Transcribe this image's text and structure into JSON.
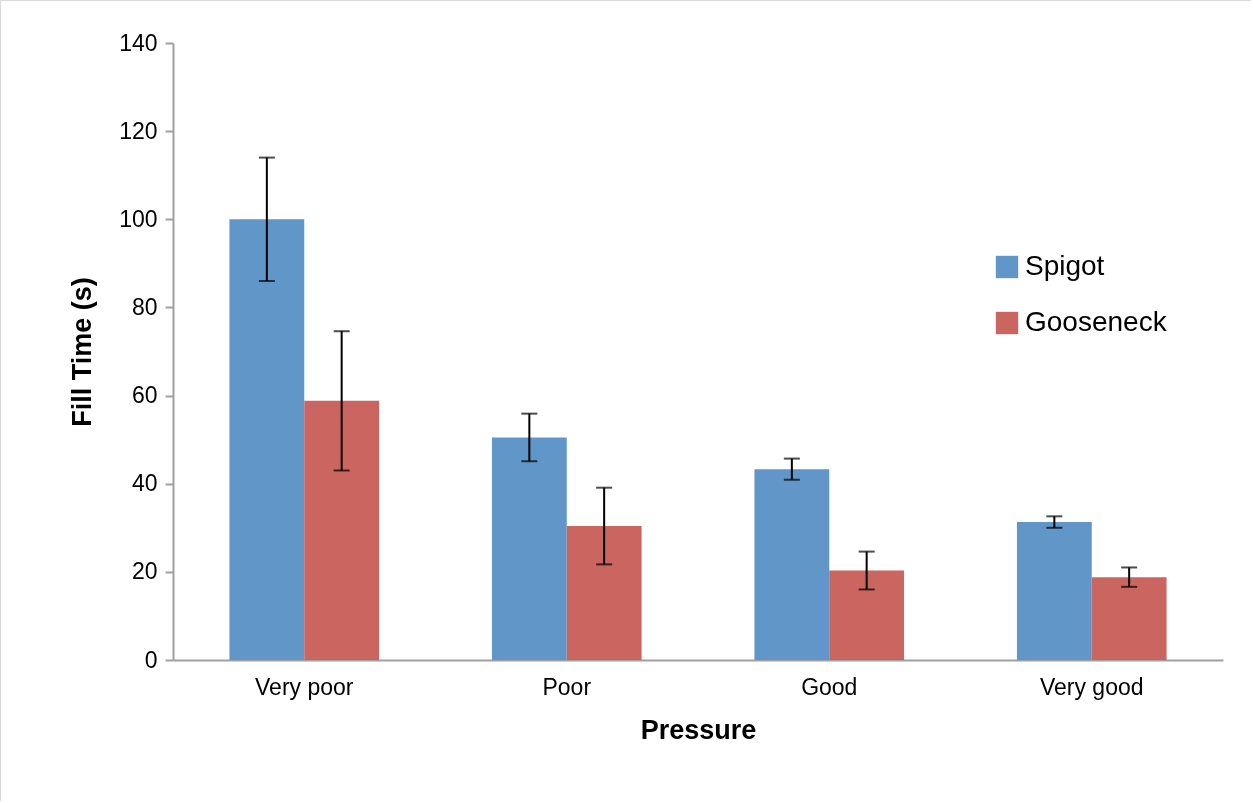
{
  "chart_data": {
    "type": "bar",
    "xlabel": "Pressure",
    "ylabel": "Fill Time (s)",
    "categories": [
      "Very poor",
      "Poor",
      "Good",
      "Very good"
    ],
    "series": [
      {
        "name": "Spigot",
        "color": "#6196c9",
        "values": [
          100,
          50.5,
          43.3,
          31.3
        ],
        "errors": [
          14,
          5.4,
          2.4,
          1.3
        ]
      },
      {
        "name": "Gooseneck",
        "color": "#cb6560",
        "values": [
          58.8,
          30.4,
          20.3,
          18.8
        ],
        "errors": [
          15.8,
          8.7,
          4.3,
          2.2
        ]
      }
    ],
    "ylim": [
      0,
      140
    ],
    "yticks": [
      0,
      20,
      40,
      60,
      80,
      100,
      120,
      140
    ],
    "grid": false,
    "legend": "right"
  }
}
